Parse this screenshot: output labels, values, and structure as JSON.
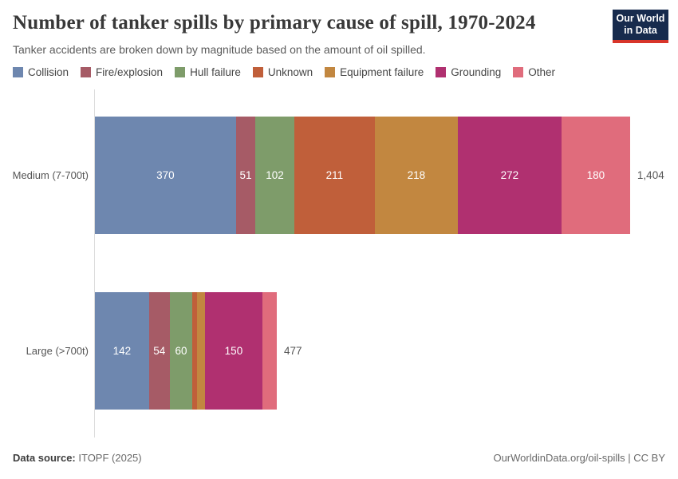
{
  "header": {
    "title": "Number of tanker spills by primary cause of spill, 1970-2024",
    "subtitle": "Tanker accidents are broken down by magnitude based on the amount of oil spilled.",
    "logo": {
      "line1": "Our World",
      "line2": "in Data",
      "bg_color": "#172b4d",
      "accent_color": "#d8352a"
    }
  },
  "legend": [
    {
      "label": "Collision",
      "color": "#6e87af"
    },
    {
      "label": "Fire/explosion",
      "color": "#a65b66"
    },
    {
      "label": "Hull failure",
      "color": "#7e9c6a"
    },
    {
      "label": "Unknown",
      "color": "#c05f3a"
    },
    {
      "label": "Equipment failure",
      "color": "#c28740"
    },
    {
      "label": "Grounding",
      "color": "#b03070"
    },
    {
      "label": "Other",
      "color": "#e06c7c"
    }
  ],
  "chart_data": {
    "type": "bar",
    "orientation": "horizontal",
    "stacked": true,
    "title": "Number of tanker spills by primary cause of spill, 1970-2024",
    "subtitle": "Tanker accidents are broken down by magnitude based on the amount of oil spilled.",
    "categories": [
      "Medium (7-700t)",
      "Large (>700t)"
    ],
    "series": [
      {
        "name": "Collision",
        "color": "#6e87af",
        "values": [
          370,
          142
        ]
      },
      {
        "name": "Fire/explosion",
        "color": "#a65b66",
        "values": [
          51,
          54
        ]
      },
      {
        "name": "Hull failure",
        "color": "#7e9c6a",
        "values": [
          102,
          60
        ]
      },
      {
        "name": "Unknown",
        "color": "#c05f3a",
        "values": [
          211,
          12
        ]
      },
      {
        "name": "Equipment failure",
        "color": "#c28740",
        "values": [
          218,
          21
        ]
      },
      {
        "name": "Grounding",
        "color": "#b03070",
        "values": [
          272,
          150
        ]
      },
      {
        "name": "Other",
        "color": "#e06c7c",
        "values": [
          180,
          38
        ]
      }
    ],
    "totals": [
      1404,
      477
    ],
    "total_labels": [
      "1,404",
      "477"
    ],
    "xlabel": "",
    "ylabel": "",
    "x_range": [
      0,
      1404
    ],
    "grid": false,
    "legend_position": "top",
    "value_labels": "inside-white"
  },
  "footer": {
    "source_label": "Data source:",
    "source_value": "ITOPF (2025)",
    "right_text": "OurWorldinData.org/oil-spills | CC BY"
  }
}
